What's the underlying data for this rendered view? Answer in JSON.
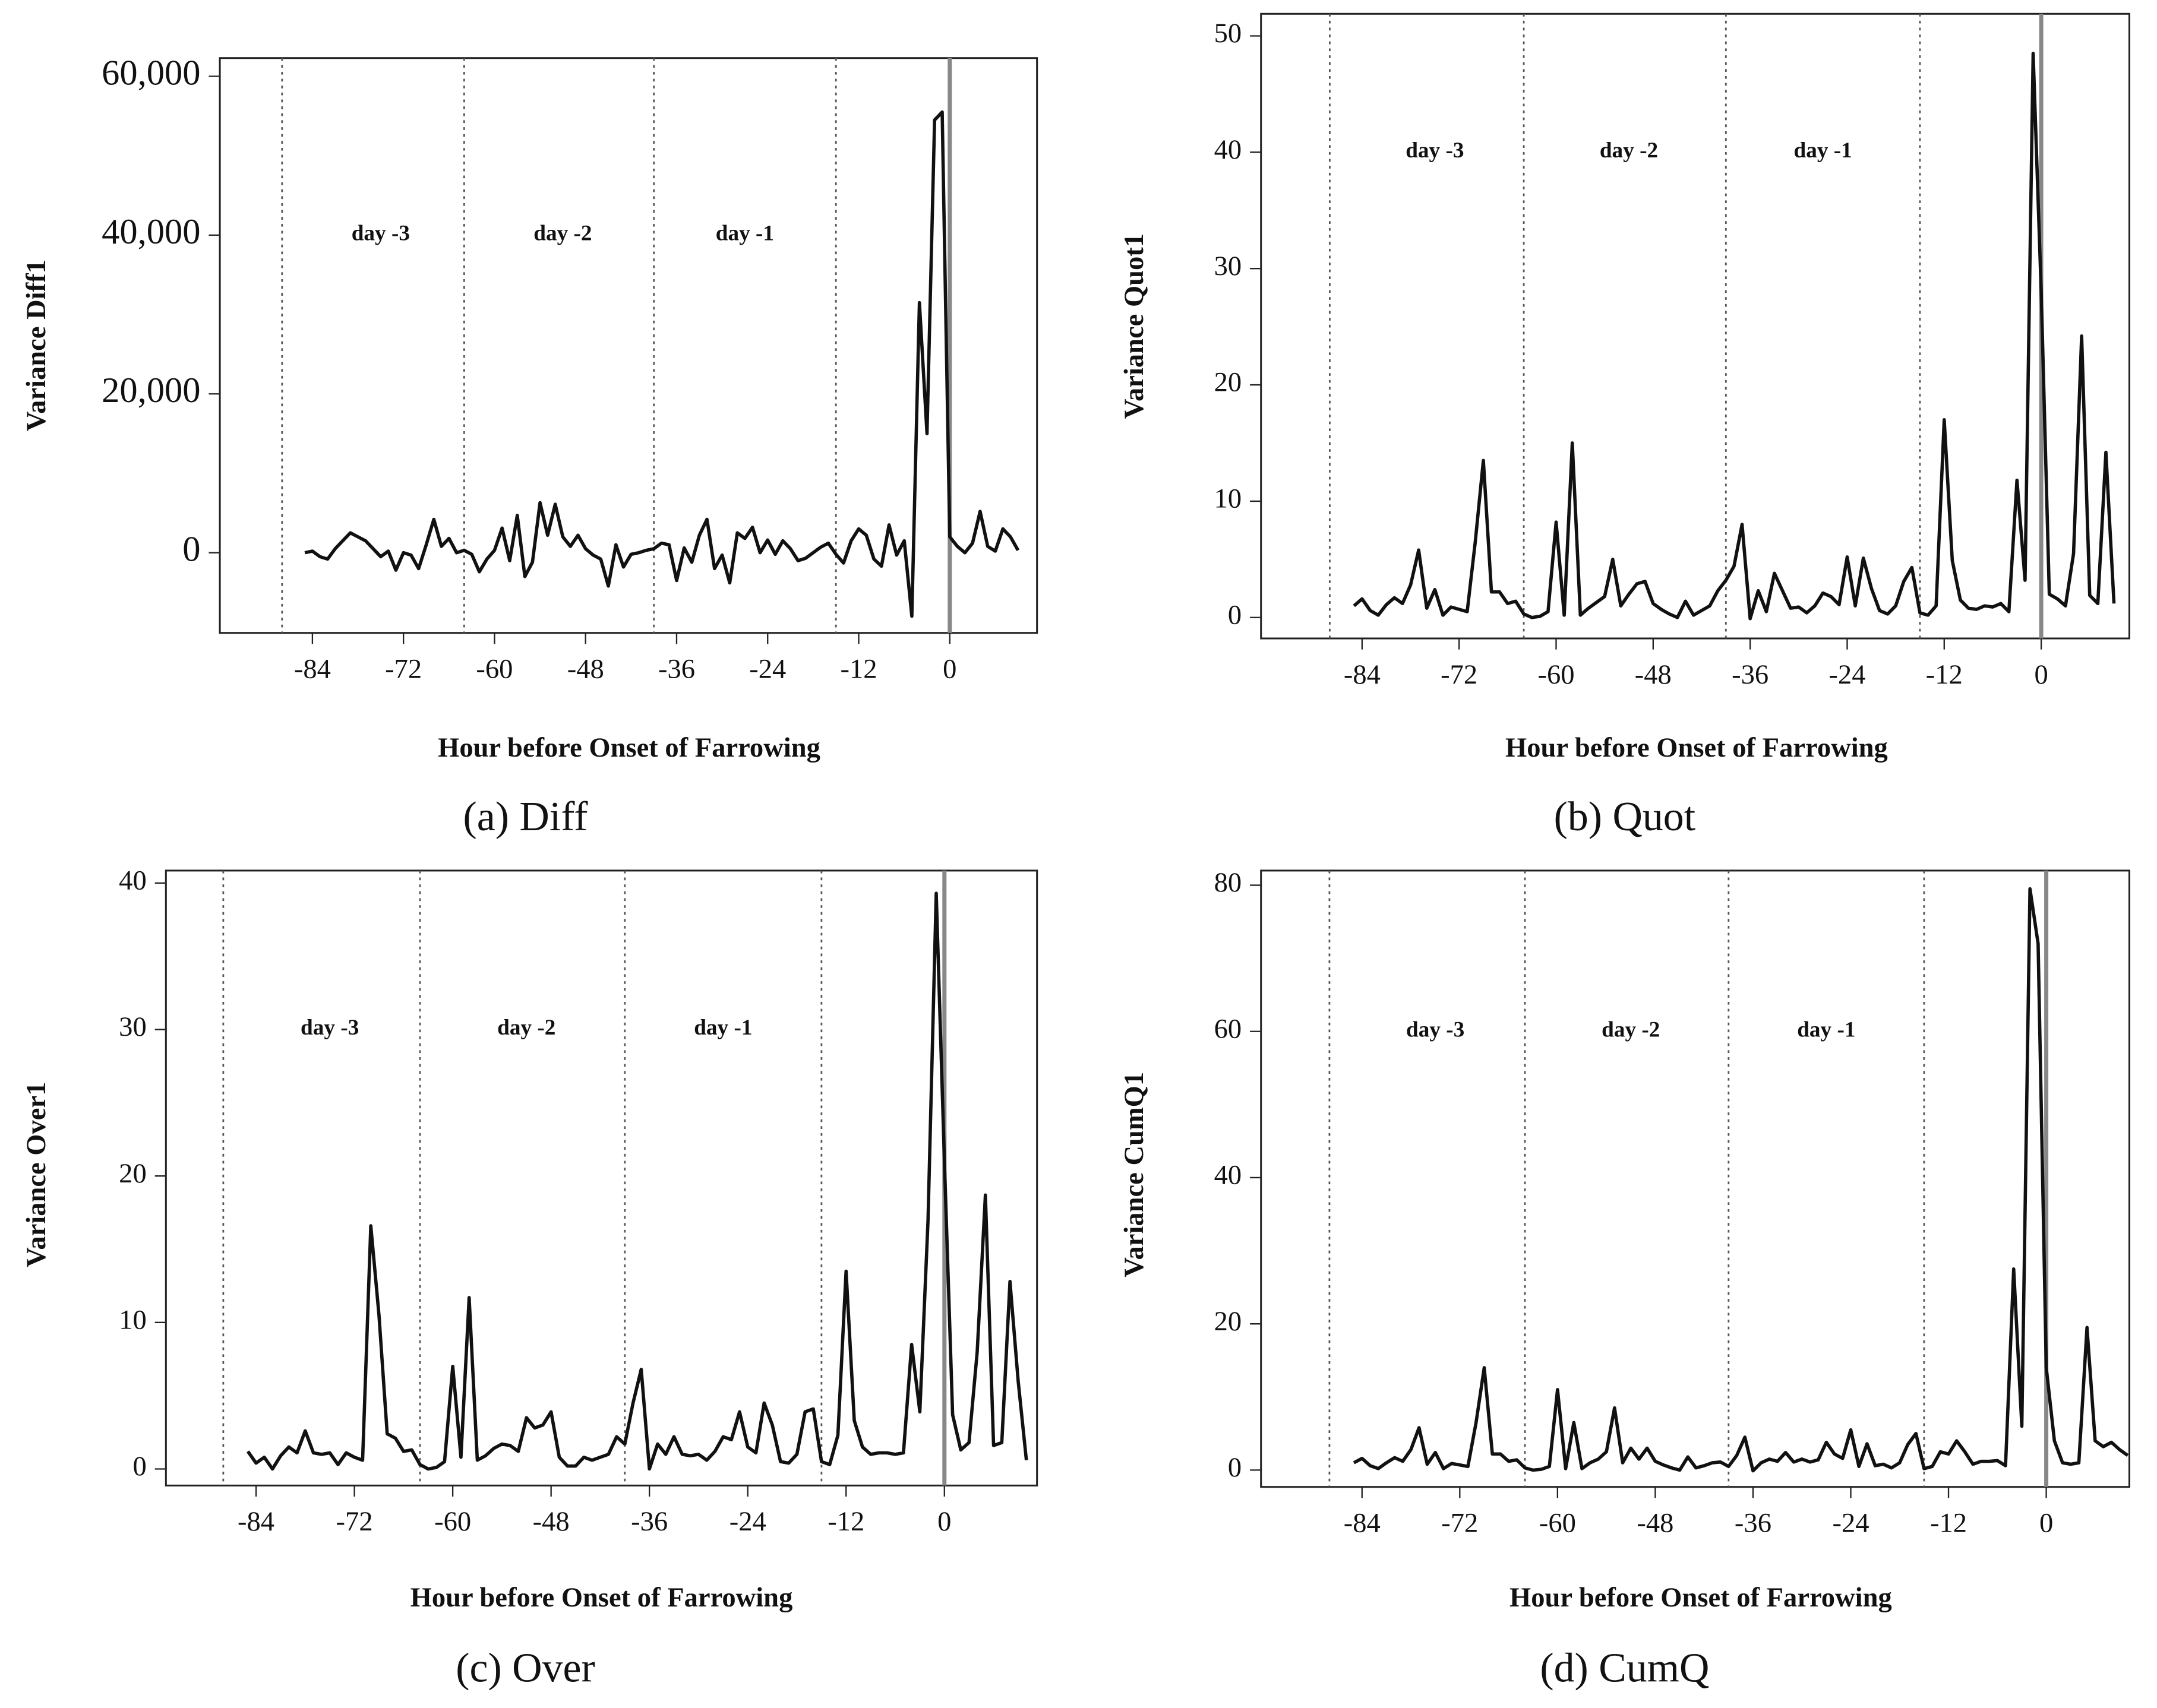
{
  "chart_data": [
    {
      "type": "line",
      "title": "(a) Diff",
      "xlabel": "Hour before Onset of Farrowing",
      "ylabel": "Variance Diff1",
      "color": "#111111",
      "x": [
        -85,
        -84,
        -83,
        -82,
        -81,
        -80,
        -79,
        -78,
        -77,
        -76,
        -75,
        -74,
        -73,
        -72,
        -71,
        -70,
        -69,
        -68,
        -67,
        -66,
        -65,
        -64,
        -63,
        -62,
        -61,
        -60,
        -59,
        -58,
        -57,
        -56,
        -55,
        -54,
        -53,
        -52,
        -51,
        -50,
        -49,
        -48,
        -47,
        -46,
        -45,
        -44,
        -43,
        -42,
        -41,
        -40,
        -39,
        -38,
        -37,
        -36,
        -35,
        -34,
        -33,
        -32,
        -31,
        -30,
        -29,
        -28,
        -27,
        -26,
        -25,
        -24,
        -23,
        -22,
        -21,
        -20,
        -19,
        -18,
        -17,
        -16,
        -15,
        -14,
        -13,
        -12,
        -11,
        -10,
        -9,
        -8,
        -7,
        -6,
        -5,
        -4,
        -3,
        -2,
        -1,
        0,
        1,
        2,
        3,
        4,
        5,
        6,
        7,
        8,
        9
      ],
      "values": [
        0,
        200,
        -500,
        -800,
        500,
        1500,
        2500,
        2000,
        1500,
        500,
        -500,
        200,
        -2200,
        0,
        -300,
        -2000,
        1000,
        4200,
        800,
        1800,
        0,
        300,
        -200,
        -2400,
        -800,
        300,
        3100,
        -1000,
        4700,
        -3000,
        -1200,
        6300,
        2200,
        6100,
        2000,
        800,
        2200,
        500,
        -300,
        -800,
        -4200,
        1000,
        -1800,
        -200,
        0,
        300,
        500,
        1200,
        1000,
        -3500,
        600,
        -1200,
        2200,
        4200,
        -2000,
        -300,
        -3800,
        2500,
        1800,
        3200,
        0,
        1600,
        -200,
        1500,
        500,
        -1000,
        -700,
        0,
        700,
        1200,
        -200,
        -1300,
        1500,
        3000,
        2200,
        -800,
        -1700,
        3500,
        -300,
        1500,
        -8000,
        31500,
        15000,
        54500,
        55500,
        2000,
        800,
        0,
        1200,
        5200,
        800,
        200,
        3000,
        2000,
        300
      ],
      "xlim": [
        -96.2,
        11.5
      ],
      "ylim": [
        -10100,
        62300
      ],
      "xticks": [
        -84,
        -72,
        -60,
        -48,
        -36,
        -24,
        -12,
        0
      ],
      "yticks": [
        0,
        {
          "value": 20000,
          "label": "20,000"
        },
        {
          "value": 40000,
          "label": "40,000"
        },
        {
          "value": 60000,
          "label": "60,000"
        }
      ],
      "day_lines": [
        -88,
        -64,
        -39,
        -15
      ],
      "onset_line": 0,
      "annotations": [
        {
          "text": "day -3",
          "x": -75,
          "y": 40000
        },
        {
          "text": "day -2",
          "x": -51,
          "y": 40000
        },
        {
          "text": "day -1",
          "x": -27,
          "y": 40000
        }
      ]
    },
    {
      "type": "line",
      "title": "(b) Quot",
      "xlabel": "Hour before Onset of Farrowing",
      "ylabel": "Variance Quot1",
      "color": "#111111",
      "x": [
        -85,
        -84,
        -83,
        -82,
        -81,
        -80,
        -79,
        -78,
        -77,
        -76,
        -75,
        -74,
        -73,
        -72,
        -71,
        -70,
        -69,
        -68,
        -67,
        -66,
        -65,
        -64,
        -63,
        -62,
        -61,
        -60,
        -59,
        -58,
        -57,
        -56,
        -55,
        -54,
        -53,
        -52,
        -51,
        -50,
        -49,
        -48,
        -47,
        -46,
        -45,
        -44,
        -43,
        -42,
        -41,
        -40,
        -39,
        -38,
        -37,
        -36,
        -35,
        -34,
        -33,
        -32,
        -31,
        -30,
        -29,
        -28,
        -27,
        -26,
        -25,
        -24,
        -23,
        -22,
        -21,
        -20,
        -19,
        -18,
        -17,
        -16,
        -15,
        -14,
        -13,
        -12,
        -11,
        -10,
        -9,
        -8,
        -7,
        -6,
        -5,
        -4,
        -3,
        -2,
        -1,
        0,
        1,
        2,
        3,
        4,
        5,
        6,
        7,
        8,
        9
      ],
      "values": [
        1,
        1.6,
        0.6,
        0.2,
        1.1,
        1.7,
        1.2,
        2.8,
        5.8,
        0.8,
        2.4,
        0.2,
        0.9,
        0.7,
        0.5,
        6.5,
        13.5,
        2.2,
        2.2,
        1.2,
        1.4,
        0.3,
        0,
        0.1,
        0.5,
        8.2,
        0.2,
        15,
        0.2,
        0.8,
        1.3,
        1.8,
        5,
        1,
        2,
        2.9,
        3.1,
        1.2,
        0.7,
        0.3,
        0,
        1.4,
        0.2,
        0.6,
        1,
        2.3,
        3.2,
        4.4,
        8,
        -0.1,
        2.3,
        0.5,
        3.8,
        2.3,
        0.8,
        0.9,
        0.4,
        1,
        2.1,
        1.8,
        1.1,
        5.2,
        1,
        5.1,
        2.5,
        0.6,
        0.3,
        1,
        3.1,
        4.3,
        0.4,
        0.2,
        1,
        17,
        4.9,
        1.5,
        0.8,
        0.7,
        1,
        0.9,
        1.2,
        0.5,
        11.8,
        3.2,
        48.5,
        28,
        2,
        1.6,
        1,
        5.5,
        24.2,
        1.9,
        1.2,
        14.2,
        1.2
      ],
      "xlim": [
        -96.5,
        10.9
      ],
      "ylim": [
        -1.8,
        51.9
      ],
      "xticks": [
        -84,
        -72,
        -60,
        -48,
        -36,
        -24,
        -12,
        0
      ],
      "yticks": [
        0,
        10,
        20,
        30,
        40,
        50
      ],
      "day_lines": [
        -88,
        -64,
        -39,
        -15
      ],
      "onset_line": 0,
      "annotations": [
        {
          "text": "day -3",
          "x": -75,
          "y": 40
        },
        {
          "text": "day -2",
          "x": -51,
          "y": 40
        },
        {
          "text": "day -1",
          "x": -27,
          "y": 40
        }
      ]
    },
    {
      "type": "line",
      "title": "(c) Over",
      "xlabel": "Hour before Onset of Farrowing",
      "ylabel": "Variance Over1",
      "color": "#111111",
      "x": [
        -85,
        -84,
        -83,
        -82,
        -81,
        -80,
        -79,
        -78,
        -77,
        -76,
        -75,
        -74,
        -73,
        -72,
        -71,
        -70,
        -69,
        -68,
        -67,
        -66,
        -65,
        -64,
        -63,
        -62,
        -61,
        -60,
        -59,
        -58,
        -57,
        -56,
        -55,
        -54,
        -53,
        -52,
        -51,
        -50,
        -49,
        -48,
        -47,
        -46,
        -45,
        -44,
        -43,
        -42,
        -41,
        -40,
        -39,
        -38,
        -37,
        -36,
        -35,
        -34,
        -33,
        -32,
        -31,
        -30,
        -29,
        -28,
        -27,
        -26,
        -25,
        -24,
        -23,
        -22,
        -21,
        -20,
        -19,
        -18,
        -17,
        -16,
        -15,
        -14,
        -13,
        -12,
        -11,
        -10,
        -9,
        -8,
        -7,
        -6,
        -5,
        -4,
        -3,
        -2,
        -1,
        0,
        1,
        2,
        3,
        4,
        5,
        6,
        7,
        8,
        9,
        10
      ],
      "values": [
        1.2,
        0.4,
        0.8,
        0,
        0.9,
        1.5,
        1.1,
        2.6,
        1.1,
        1,
        1.1,
        0.3,
        1.1,
        0.8,
        0.6,
        16.6,
        10.5,
        2.4,
        2.1,
        1.2,
        1.3,
        0.3,
        0,
        0.1,
        0.5,
        7,
        0.8,
        11.7,
        0.6,
        0.9,
        1.4,
        1.7,
        1.6,
        1.2,
        3.5,
        2.8,
        3,
        3.9,
        0.8,
        0.2,
        0.2,
        0.8,
        0.6,
        0.8,
        1,
        2.2,
        1.7,
        4.5,
        6.8,
        0,
        1.7,
        1,
        2.2,
        1,
        0.9,
        1,
        0.6,
        1.2,
        2.2,
        2,
        3.9,
        1.5,
        1.1,
        4.5,
        3,
        0.5,
        0.4,
        1,
        3.9,
        4.1,
        0.5,
        0.3,
        2.3,
        13.5,
        3.3,
        1.5,
        1,
        1.1,
        1.1,
        1,
        1.1,
        8.5,
        3.9,
        17,
        39.3,
        21,
        3.7,
        1.3,
        1.8,
        8,
        18.7,
        1.6,
        1.8,
        12.8,
        6,
        0.6
      ],
      "xlim": [
        -95,
        11.3
      ],
      "ylim": [
        -1.13,
        40.85
      ],
      "xticks": [
        -84,
        -72,
        -60,
        -48,
        -36,
        -24,
        -12,
        0
      ],
      "yticks": [
        0,
        10,
        20,
        30,
        40
      ],
      "day_lines": [
        -88,
        -64,
        -39,
        -15
      ],
      "onset_line": 0,
      "annotations": [
        {
          "text": "day -3",
          "x": -75,
          "y": 30
        },
        {
          "text": "day -2",
          "x": -51,
          "y": 30
        },
        {
          "text": "day -1",
          "x": -27,
          "y": 30
        }
      ]
    },
    {
      "type": "line",
      "title": "(d) CumQ",
      "xlabel": "Hour before Onset of Farrowing",
      "ylabel": "Variance CumQ1",
      "color": "#111111",
      "x": [
        -85,
        -84,
        -83,
        -82,
        -81,
        -80,
        -79,
        -78,
        -77,
        -76,
        -75,
        -74,
        -73,
        -72,
        -71,
        -70,
        -69,
        -68,
        -67,
        -66,
        -65,
        -64,
        -63,
        -62,
        -61,
        -60,
        -59,
        -58,
        -57,
        -56,
        -55,
        -54,
        -53,
        -52,
        -51,
        -50,
        -49,
        -48,
        -47,
        -46,
        -45,
        -44,
        -43,
        -42,
        -41,
        -40,
        -39,
        -38,
        -37,
        -36,
        -35,
        -34,
        -33,
        -32,
        -31,
        -30,
        -29,
        -28,
        -27,
        -26,
        -25,
        -24,
        -23,
        -22,
        -21,
        -20,
        -19,
        -18,
        -17,
        -16,
        -15,
        -14,
        -13,
        -12,
        -11,
        -10,
        -9,
        -8,
        -7,
        -6,
        -5,
        -4,
        -3,
        -2,
        -1,
        0,
        1,
        2,
        3,
        4,
        5,
        6,
        7,
        8,
        9,
        10
      ],
      "values": [
        1,
        1.6,
        0.6,
        0.2,
        1,
        1.7,
        1.2,
        2.8,
        5.8,
        0.8,
        2.4,
        0.2,
        0.9,
        0.7,
        0.5,
        6.5,
        14,
        2.2,
        2.2,
        1.2,
        1.4,
        0.3,
        0,
        0.1,
        0.5,
        11,
        0.2,
        6.5,
        0.2,
        1,
        1.5,
        2.5,
        8.5,
        1,
        3,
        1.5,
        3,
        1.2,
        0.7,
        0.3,
        0,
        1.8,
        0.3,
        0.6,
        1,
        1.1,
        0.5,
        2,
        4.5,
        -0.1,
        1,
        1.5,
        1.2,
        2.4,
        1.1,
        1.5,
        1.1,
        1.4,
        3.8,
        2.2,
        1.6,
        5.5,
        0.5,
        3.6,
        0.6,
        0.8,
        0.3,
        1,
        3.5,
        5,
        0.2,
        0.5,
        2.5,
        2.2,
        4,
        2.5,
        0.8,
        1.2,
        1.2,
        1.3,
        0.6,
        27.5,
        6,
        79.5,
        72,
        14,
        4,
        1,
        0.8,
        1,
        19.5,
        4,
        3.2,
        3.8,
        2.8,
        2
      ],
      "xlim": [
        -96.4,
        10.2
      ],
      "ylim": [
        -2.3,
        82
      ],
      "xticks": [
        -84,
        -72,
        -60,
        -48,
        -36,
        -24,
        -12,
        0
      ],
      "yticks": [
        0,
        20,
        40,
        60,
        80
      ],
      "day_lines": [
        -88,
        -64,
        -39,
        -15
      ],
      "onset_line": 0,
      "annotations": [
        {
          "text": "day -3",
          "x": -75,
          "y": 60
        },
        {
          "text": "day -2",
          "x": -51,
          "y": 60
        },
        {
          "text": "day -1",
          "x": -27,
          "y": 60
        }
      ]
    }
  ]
}
